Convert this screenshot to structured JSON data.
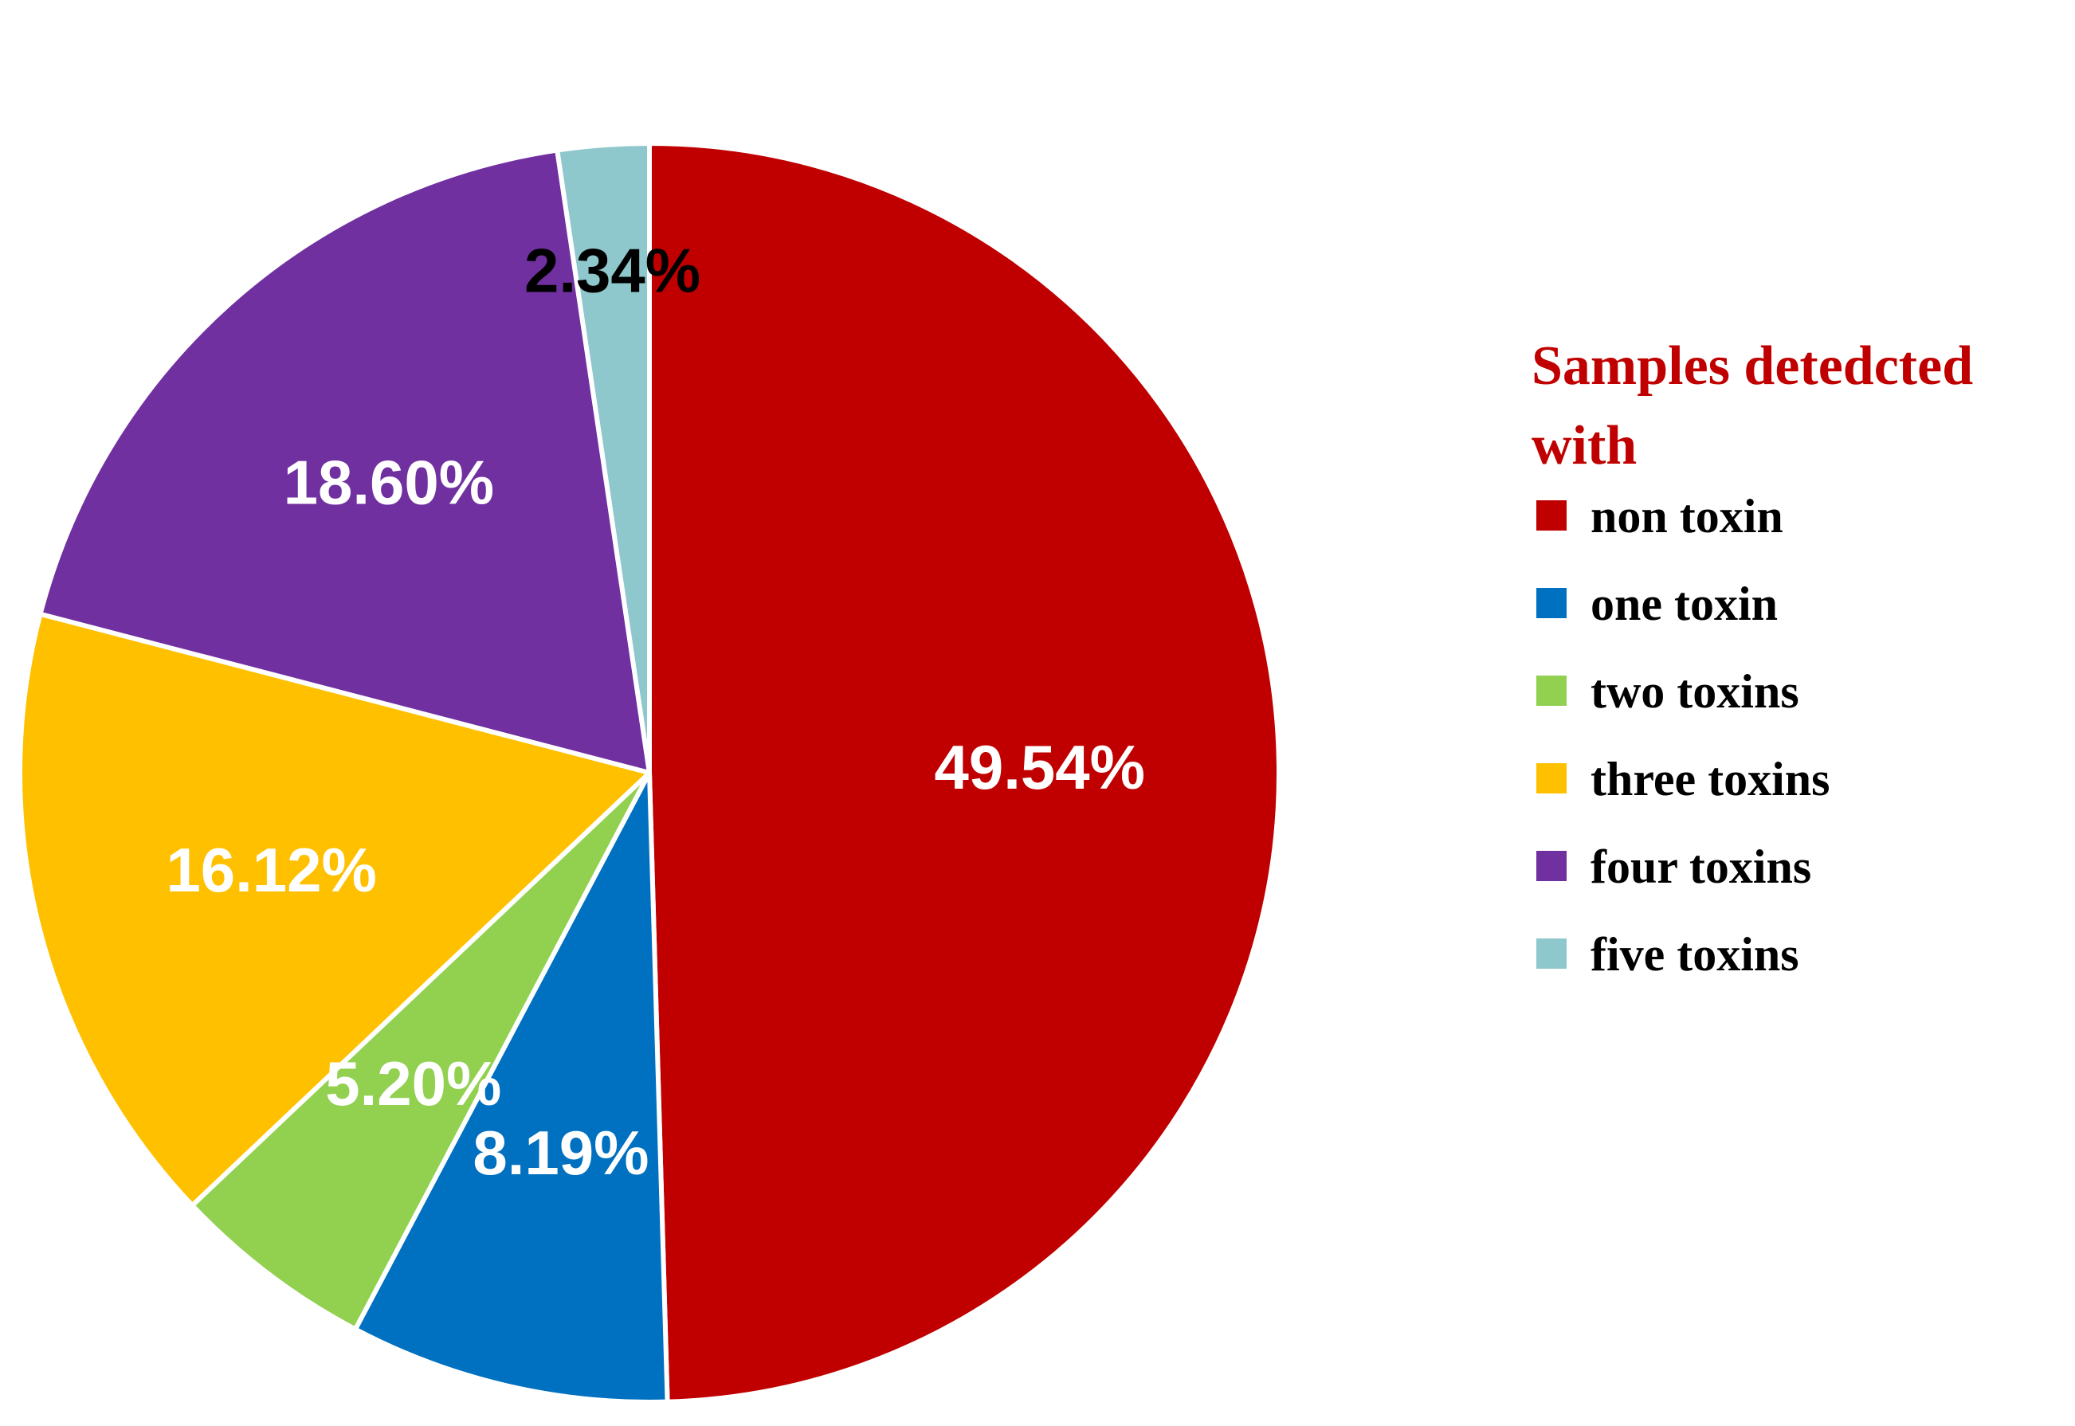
{
  "chart_data": {
    "type": "pie",
    "legend_title": "Samples detedcted with",
    "legend_title_lines": [
      "Samples detedcted",
      "with"
    ],
    "legend_placement": "right",
    "start": "12 o'clock",
    "direction": "clockwise",
    "slices": [
      {
        "name": "non toxin",
        "value": 49.54,
        "label": "49.54%",
        "color": "#C00000",
        "label_color": "#ffffff"
      },
      {
        "name": "one toxin",
        "value": 8.19,
        "label": "8.19%",
        "color": "#0070C0",
        "label_color": "#ffffff"
      },
      {
        "name": "two toxins",
        "value": 5.2,
        "label": "5.20%",
        "color": "#92D050",
        "label_color": "#ffffff"
      },
      {
        "name": "three toxins",
        "value": 16.12,
        "label": "16.12%",
        "color": "#FFC000",
        "label_color": "#ffffff"
      },
      {
        "name": "four toxins",
        "value": 18.6,
        "label": "18.60%",
        "color": "#7030A0",
        "label_color": "#ffffff"
      },
      {
        "name": "five toxins",
        "value": 2.34,
        "label": "2.34%",
        "color": "#8EC7CC",
        "label_color": "#000000"
      }
    ],
    "legend_title_color": "#C00000"
  }
}
